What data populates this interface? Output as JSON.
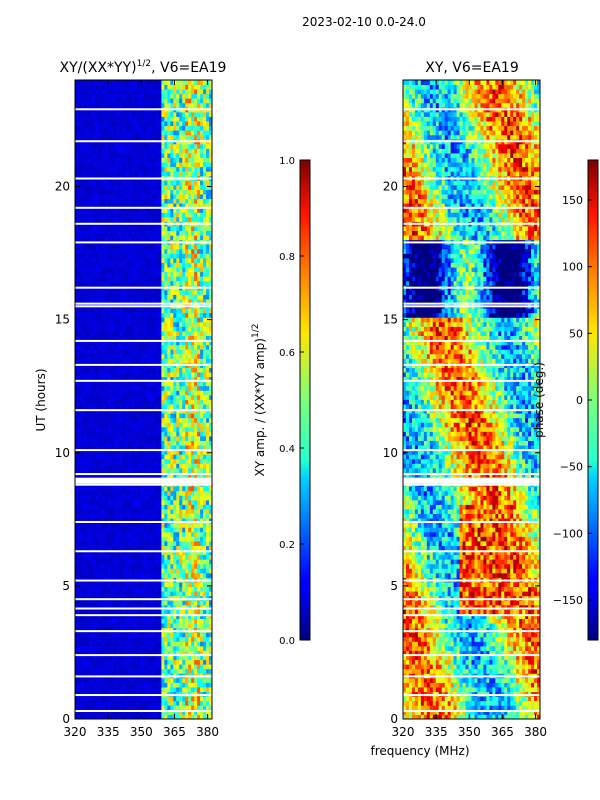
{
  "suptitle": "2023-02-10 0.0-24.0",
  "chart_data": [
    {
      "type": "heatmap",
      "title_text": "XY/(XX*YY)",
      "title_power": "1/2",
      "title_suffix": ", V6=EA19",
      "xlabel": "",
      "ylabel": "UT (hours)",
      "xlim": [
        320,
        382
      ],
      "ylim": [
        0,
        24
      ],
      "xticks": [
        320,
        335,
        350,
        365,
        380
      ],
      "yticks": [
        0,
        5,
        10,
        15,
        20
      ],
      "colorbar": {
        "label_text": "XY amp. / (XX*YY amp)",
        "label_power": "1/2",
        "range": [
          0.0,
          1.0
        ],
        "ticks": [
          "0.0",
          "0.2",
          "0.4",
          "0.6",
          "0.8",
          "1.0"
        ],
        "colormap": "jet"
      }
    },
    {
      "type": "heatmap",
      "title_text": "XY, V6=EA19",
      "xlabel": "frequency (MHz)",
      "ylabel": "",
      "xlim": [
        320,
        382
      ],
      "ylim": [
        0,
        24
      ],
      "xticks": [
        320,
        335,
        350,
        365,
        380
      ],
      "yticks": [
        0,
        5,
        10,
        15,
        20
      ],
      "colorbar": {
        "label_text": "phase (deg.)",
        "range": [
          -180,
          180
        ],
        "ticks": [
          "−150",
          "−100",
          "−50",
          "0",
          "50",
          "100",
          "150"
        ],
        "colormap": "jet"
      }
    }
  ]
}
